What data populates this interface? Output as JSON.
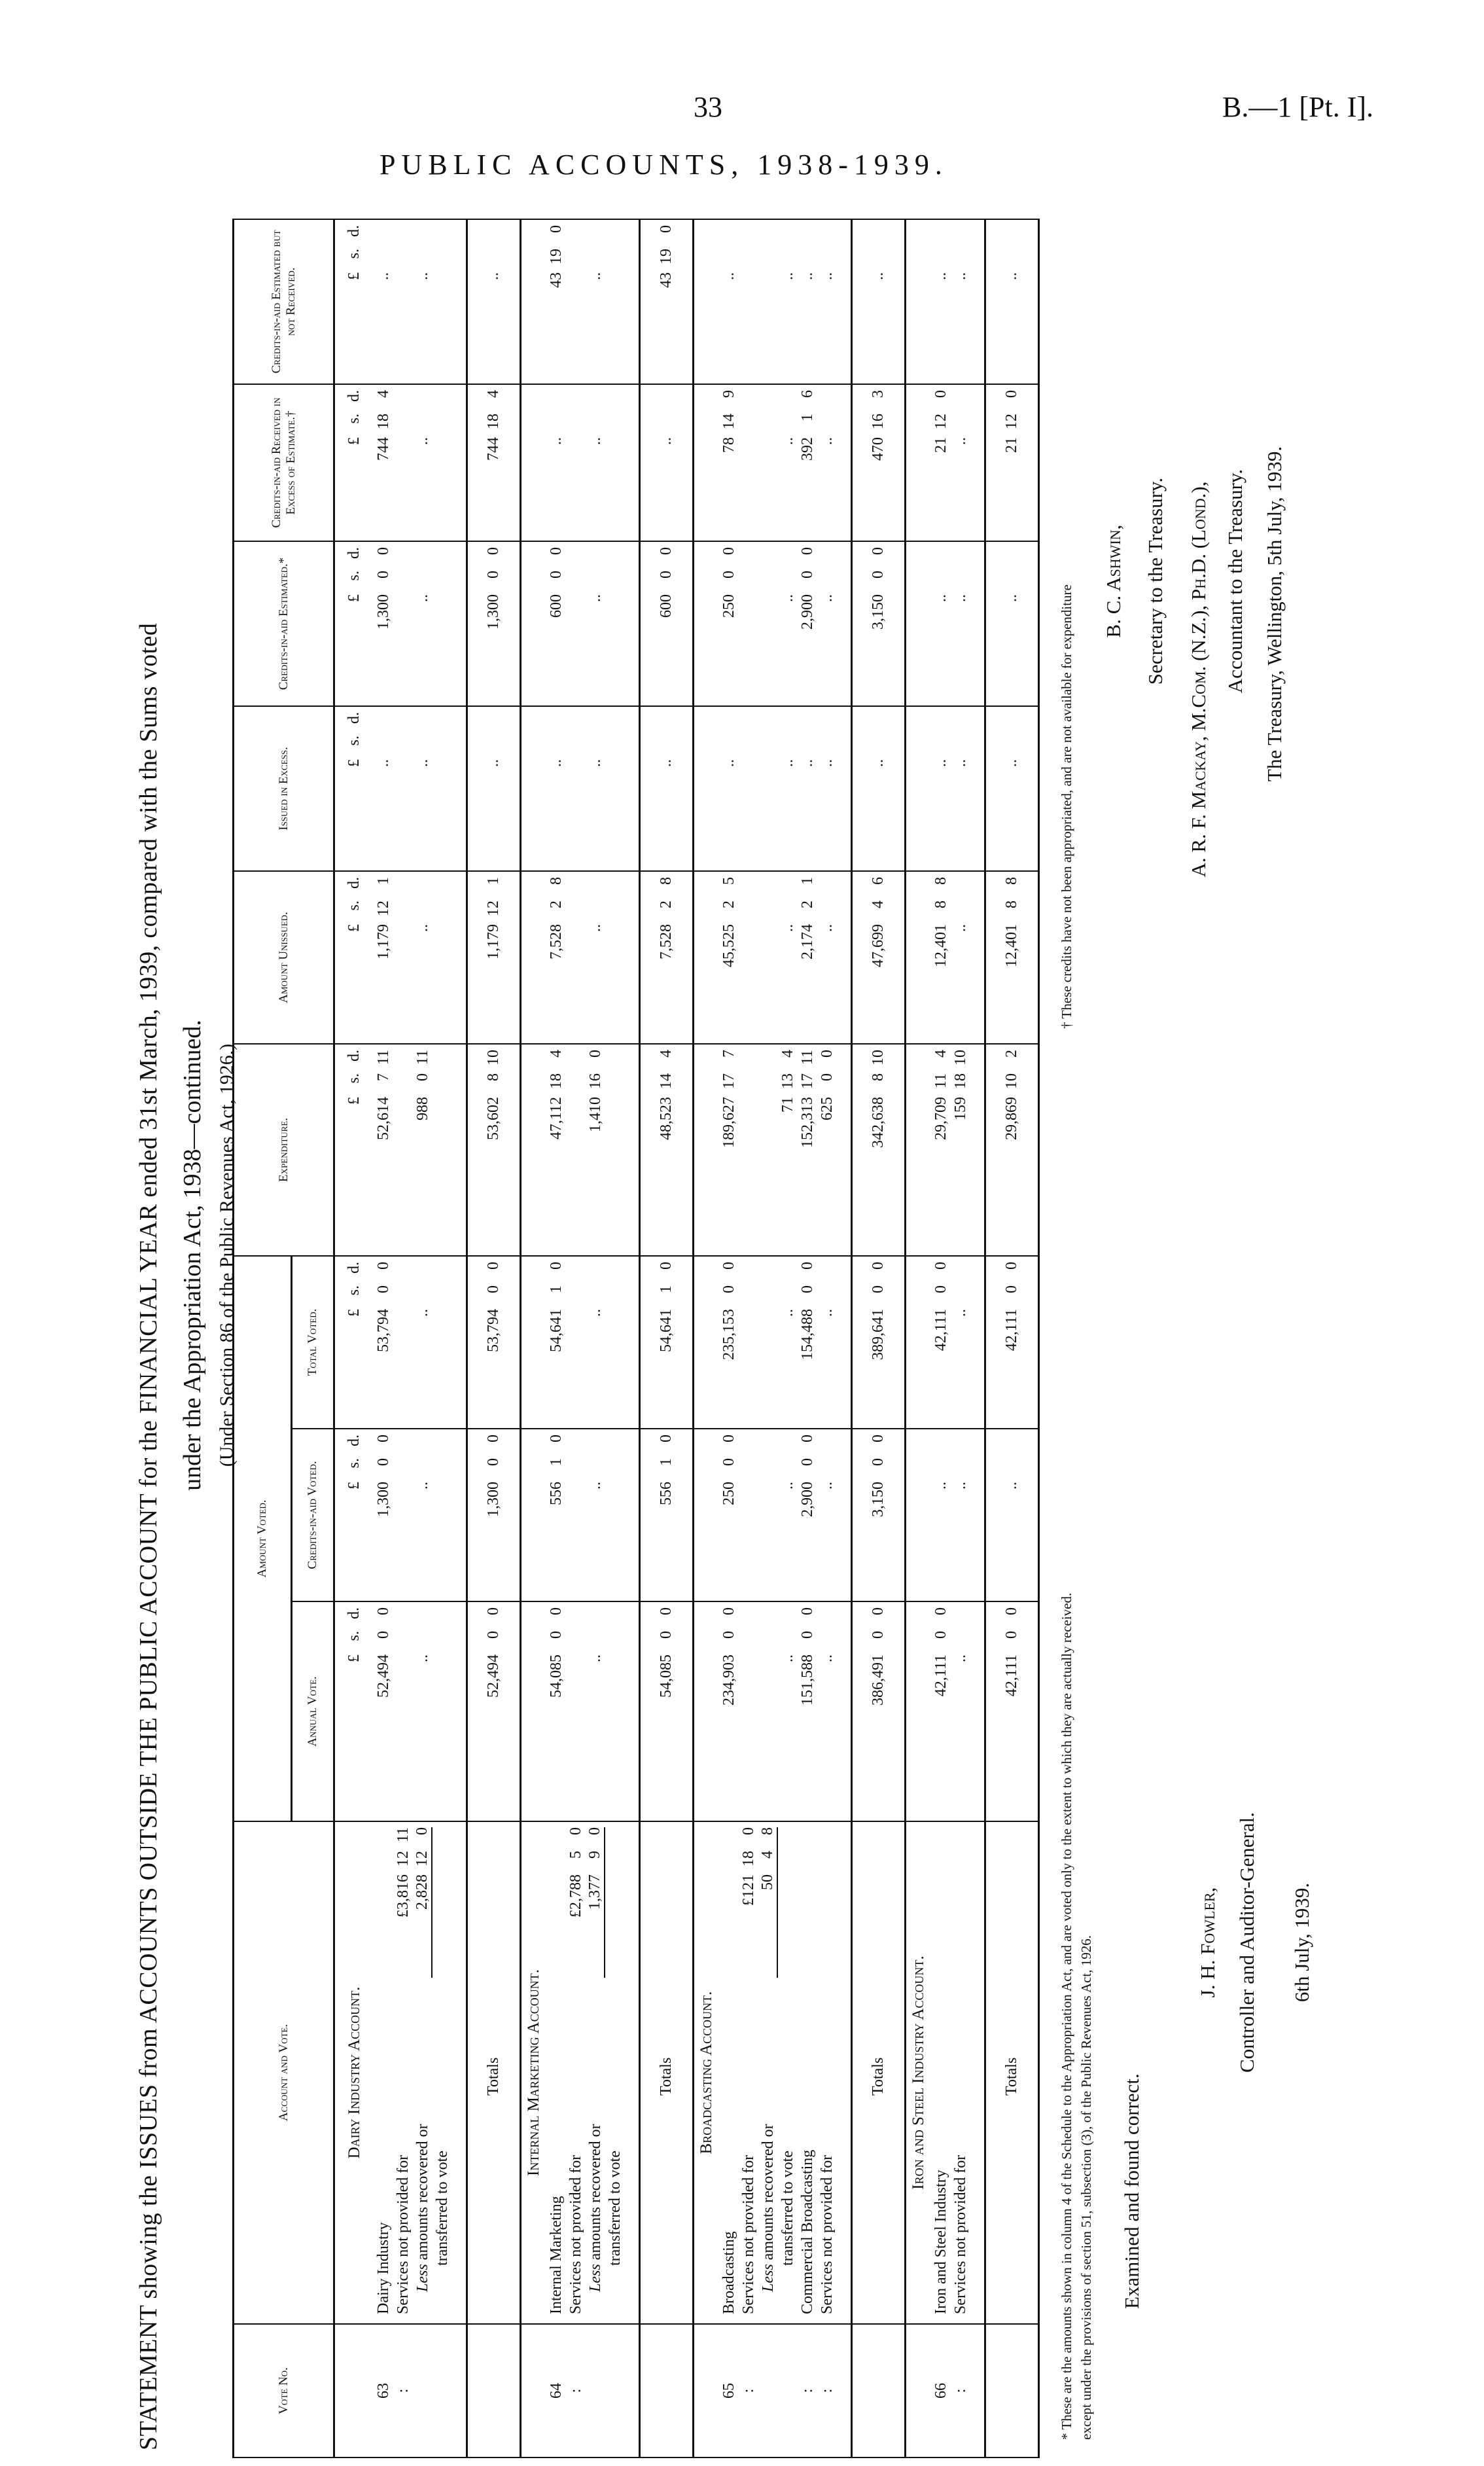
{
  "page_header": {
    "page_number": "33",
    "reference": "B.—1 [Pt. I].",
    "title": "PUBLIC ACCOUNTS, 1938-1939."
  },
  "statement": {
    "title_line1": "STATEMENT showing the ISSUES from ACCOUNTS OUTSIDE THE PUBLIC ACCOUNT for the FINANCIAL YEAR ended 31st March, 1939, compared with the Sums voted",
    "title_line2": "under the Appropriation Act, 1938—continued.",
    "title_line3": "(Under Section 86 of the Public Revenues Act, 1926.)"
  },
  "table": {
    "headers": {
      "vote_no": "Vote No.",
      "account_and_vote": "Account and Vote.",
      "amount_voted": "Amount Voted.",
      "annual_vote": "Annual Vote.",
      "credits_in_aid_voted": "Credits-in-aid Voted.",
      "total_voted": "Total Voted.",
      "expenditure": "Expenditure.",
      "amount_unissued": "Amount Unissued.",
      "issued_in_excess": "Issued in Excess.",
      "credits_in_aid_estimated": "Credits-in-aid Estimated.*",
      "credits_in_aid_received_in_excess": "Credits-in-aid Received in Excess of Estimate.†",
      "credits_in_aid_estimated_not_received": "Credits-in-aid Estimated but not Received."
    },
    "units": [
      "£",
      "s.",
      "d."
    ],
    "sections": [
      {
        "heading": "Dairy Industry Account.",
        "rows": [
          {
            "vote": "63",
            "style": "item",
            "label": "Dairy Industry",
            "sub": "",
            "values": [
              "52,494 0 0",
              "1,300 0 0",
              "53,794 0 0",
              "52,614 7 11",
              "1,179 12 1",
              "..",
              "1,300 0 0",
              "744 18 4",
              ".."
            ]
          },
          {
            "vote": ":",
            "style": "item",
            "label": "Services not provided for",
            "sub": "£3,816 12 11",
            "values": []
          },
          {
            "vote": "",
            "style": "less",
            "em": "Less",
            "label": " amounts recovered or",
            "sub": "2,828 12 0",
            "values": [
              "..",
              "..",
              "..",
              "988 0 11",
              "..",
              "..",
              "..",
              "..",
              ".."
            ]
          },
          {
            "vote": "",
            "style": "cont",
            "label": "transferred to vote",
            "sub": "",
            "values": []
          }
        ],
        "totals_label": "Totals",
        "totals": [
          "52,494 0 0",
          "1,300 0 0",
          "53,794 0 0",
          "53,602 8 10",
          "1,179 12 1",
          "..",
          "1,300 0 0",
          "744 18 4",
          ".."
        ]
      },
      {
        "heading": "Internal Marketing Account.",
        "rows": [
          {
            "vote": "64",
            "style": "item",
            "label": "Internal Marketing",
            "sub": "",
            "values": [
              "54,085 0 0",
              "556 1 0",
              "54,641 1 0",
              "47,112 18 4",
              "7,528 2 8",
              "..",
              "600 0 0",
              "..",
              "43 19 0"
            ]
          },
          {
            "vote": ":",
            "style": "item",
            "label": "Services not provided for",
            "sub": "£2,788 5 0",
            "values": []
          },
          {
            "vote": "",
            "style": "less",
            "em": "Less",
            "label": " amounts recovered or",
            "sub": "1,377 9 0",
            "values": [
              "..",
              "..",
              "..",
              "1,410 16 0",
              "..",
              "..",
              "..",
              "..",
              ".."
            ]
          },
          {
            "vote": "",
            "style": "cont",
            "label": "transferred to vote",
            "sub": "",
            "values": []
          }
        ],
        "totals_label": "Totals",
        "totals": [
          "54,085 0 0",
          "556 1 0",
          "54,641 1 0",
          "48,523 14 4",
          "7,528 2 8",
          "..",
          "600 0 0",
          "..",
          "43 19 0"
        ]
      },
      {
        "heading": "Broadcasting Account.",
        "rows": [
          {
            "vote": "65",
            "style": "item",
            "label": "Broadcasting",
            "sub": "",
            "values": [
              "234,903 0 0",
              "250 0 0",
              "235,153 0 0",
              "189,627 17 7",
              "45,525 2 5",
              "..",
              "250 0 0",
              "78 14 9",
              ".."
            ]
          },
          {
            "vote": ":",
            "style": "item",
            "label": "Services not provided for",
            "sub": "£121 18 0",
            "values": []
          },
          {
            "vote": "",
            "style": "less",
            "em": "Less",
            "label": " amounts recovered or",
            "sub": "50 4 8",
            "values": []
          },
          {
            "vote": "",
            "style": "cont",
            "label": "transferred to vote",
            "sub": "",
            "values": [
              "..",
              "..",
              "..",
              "71 13 4",
              "..",
              "..",
              "..",
              "..",
              ".."
            ]
          },
          {
            "vote": ":",
            "style": "item",
            "label": "Commercial Broadcasting",
            "sub": "",
            "values": [
              "151,588 0 0",
              "2,900 0 0",
              "154,488 0 0",
              "152,313 17 11",
              "2,174 2 1",
              "..",
              "2,900 0 0",
              "392 1 6",
              ".."
            ]
          },
          {
            "vote": ":",
            "style": "item",
            "label": "Services not provided for",
            "sub": "",
            "values": [
              "..",
              "..",
              "..",
              "625 0 0",
              "..",
              "..",
              "..",
              "..",
              ".."
            ]
          }
        ],
        "totals_label": "Totals",
        "totals": [
          "386,491 0 0",
          "3,150 0 0",
          "389,641 0 0",
          "342,638 8 10",
          "47,699 4 6",
          "..",
          "3,150 0 0",
          "470 16 3",
          ".."
        ]
      },
      {
        "heading": "Iron and Steel Industry Account.",
        "rows": [
          {
            "vote": "66",
            "style": "item",
            "label": "Iron and Steel Industry",
            "sub": "",
            "values": [
              "42,111 0 0",
              "..",
              "42,111 0 0",
              "29,709 11 4",
              "12,401 8 8",
              "..",
              "..",
              "21 12 0",
              ".."
            ]
          },
          {
            "vote": ":",
            "style": "item",
            "label": "Services not provided for",
            "sub": "",
            "values": [
              "..",
              "..",
              "..",
              "159 18 10",
              "..",
              "..",
              "..",
              "..",
              ".."
            ]
          }
        ],
        "totals_label": "Totals",
        "totals": [
          "42,111 0 0",
          "..",
          "42,111 0 0",
          "29,869 10 2",
          "12,401 8 8",
          "..",
          "..",
          "21 12 0",
          ".."
        ]
      }
    ]
  },
  "footnotes": {
    "star": "* These are the amounts shown in column 4 of the Schedule to the Appropriation Act, and are voted only to the extent to which they are actually received.",
    "dagger": "† These credits have not been appropriated, and are not available for expenditure",
    "continuation": "except under the provisions of section 51, subsection (3), of the Public Revenues Act, 1926."
  },
  "signatures": {
    "examined": "Examined and found correct.",
    "auditor_name": "J. H. Fowler,",
    "auditor_title": "Controller and Auditor-General.",
    "auditor_date": "6th July, 1939.",
    "secretary_name": "B. C. Ashwin,",
    "secretary_title": "Secretary to the Treasury.",
    "accountant_name": "A. R. F. Mackay, M.Com. (N.Z.), Ph.D. (Lond.),",
    "accountant_title": "Accountant to the Treasury.",
    "treasury_place_date": "The Treasury, Wellington, 5th July, 1939."
  }
}
